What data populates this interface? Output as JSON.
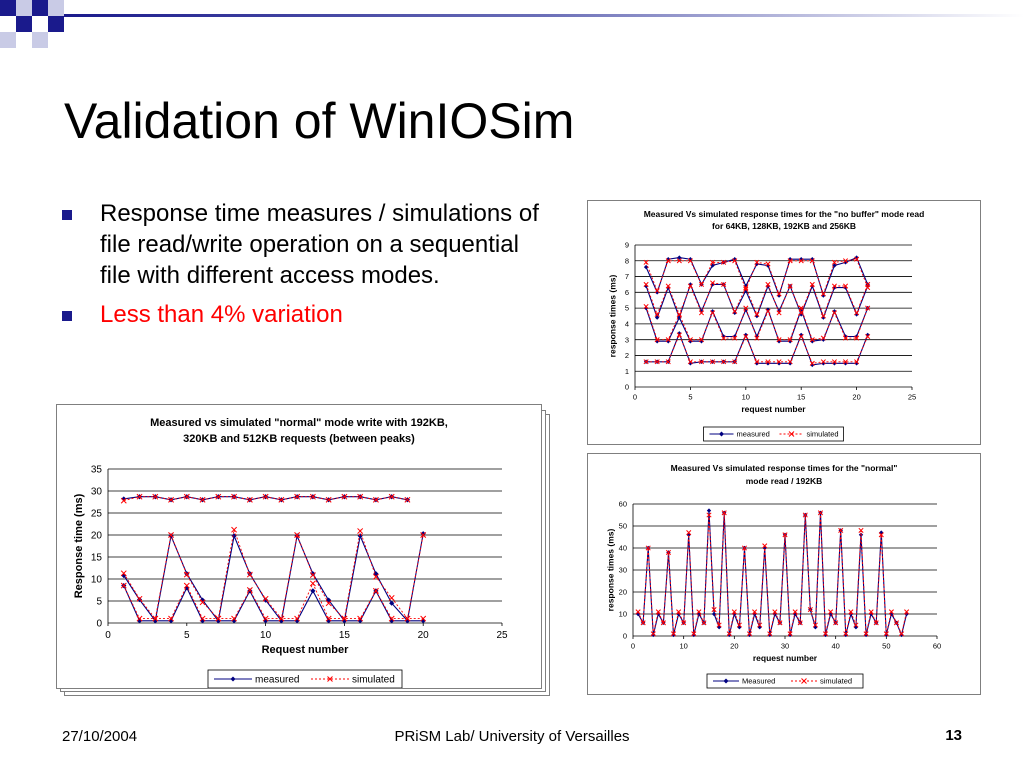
{
  "slide": {
    "title": "Validation of WinIOSim",
    "bullets": [
      "Response time measures / simulations of file read/write operation on a sequential file with different access modes.",
      "Less than 4% variation"
    ],
    "footer": {
      "date": "27/10/2004",
      "center": "PRiSM Lab/ University of Versailles",
      "page": "13"
    },
    "colors": {
      "measured": "#000080",
      "simulated": "#ff0000",
      "bullet_red": "#ff0000",
      "accent": "#1a1a8c"
    }
  },
  "chart_data": [
    {
      "id": "nobuffer",
      "type": "line",
      "title_line1": "Measured Vs simulated response times for the \"no buffer\" mode read",
      "title_line2": "for 64KB, 128KB,  192KB and 256KB",
      "xlabel": "request number",
      "ylabel": "response times (ms)",
      "xlim": [
        0,
        25
      ],
      "ylim": [
        0,
        9
      ],
      "xticks": [
        0,
        5,
        10,
        15,
        20,
        25
      ],
      "yticks": [
        0,
        1,
        2,
        3,
        4,
        5,
        6,
        7,
        8,
        9
      ],
      "legend": "bottom",
      "legend_labels": [
        "measured",
        "simulated"
      ],
      "grid": true,
      "x": [
        1,
        2,
        3,
        4,
        5,
        6,
        7,
        8,
        9,
        10,
        11,
        12,
        13,
        14,
        15,
        16,
        17,
        18,
        19,
        20,
        21
      ],
      "series": [
        {
          "name": "measured",
          "values": [
            7.6,
            6.0,
            8.1,
            8.2,
            8.1,
            6.5,
            7.7,
            7.9,
            8.1,
            6.4,
            7.8,
            7.7,
            5.8,
            8.1,
            8.1,
            8.1,
            5.8,
            7.7,
            7.9,
            8.2,
            6.5
          ]
        },
        {
          "name": "measured",
          "values": [
            6.4,
            4.4,
            6.3,
            4.4,
            6.5,
            4.8,
            6.5,
            6.5,
            4.7,
            6.1,
            4.5,
            6.4,
            4.8,
            6.4,
            4.6,
            6.4,
            4.4,
            6.3,
            6.3,
            4.6,
            6.4
          ]
        },
        {
          "name": "measured",
          "values": [
            5.0,
            2.9,
            2.9,
            4.4,
            2.9,
            2.9,
            4.8,
            3.2,
            3.2,
            4.9,
            3.2,
            4.9,
            2.9,
            2.9,
            4.9,
            2.9,
            3.0,
            4.8,
            3.2,
            3.2,
            5.0
          ]
        },
        {
          "name": "measured",
          "values": [
            1.6,
            1.6,
            1.6,
            3.4,
            1.5,
            1.6,
            1.6,
            1.6,
            1.6,
            3.3,
            1.5,
            1.5,
            1.5,
            1.5,
            3.3,
            1.4,
            1.5,
            1.5,
            1.5,
            1.5,
            3.3
          ]
        },
        {
          "name": "simulated",
          "values": [
            7.9,
            6.1,
            8.0,
            8.0,
            8.0,
            6.5,
            7.9,
            7.9,
            8.0,
            6.2,
            7.9,
            7.8,
            5.9,
            8.0,
            8.0,
            8.0,
            5.9,
            7.9,
            8.0,
            8.1,
            6.3
          ]
        },
        {
          "name": "simulated",
          "values": [
            6.5,
            4.6,
            6.4,
            4.6,
            6.4,
            4.7,
            6.6,
            6.5,
            4.8,
            6.3,
            4.6,
            6.5,
            4.7,
            6.4,
            4.7,
            6.5,
            4.5,
            6.4,
            6.4,
            4.7,
            6.5
          ]
        },
        {
          "name": "simulated",
          "values": [
            5.1,
            3.0,
            3.0,
            4.6,
            3.0,
            3.0,
            4.7,
            3.1,
            3.1,
            5.0,
            3.1,
            4.8,
            3.0,
            3.0,
            5.0,
            3.0,
            3.1,
            4.7,
            3.1,
            3.1,
            5.0
          ]
        },
        {
          "name": "simulated",
          "values": [
            1.6,
            1.6,
            1.6,
            3.3,
            1.6,
            1.6,
            1.6,
            1.6,
            1.6,
            3.2,
            1.6,
            1.6,
            1.6,
            1.6,
            3.2,
            1.5,
            1.6,
            1.6,
            1.6,
            1.6,
            3.2
          ]
        }
      ]
    },
    {
      "id": "normalread",
      "type": "line",
      "title_line1": "Measured Vs simulated response times for the \"normal\"",
      "title_line2": "mode read / 192KB",
      "xlabel": "request number",
      "ylabel": "response times (ms)",
      "xlim": [
        0,
        60
      ],
      "ylim": [
        0,
        60
      ],
      "xticks": [
        0,
        10,
        20,
        30,
        40,
        50,
        60
      ],
      "yticks": [
        0,
        10,
        20,
        30,
        40,
        50,
        60
      ],
      "legend": "bottom",
      "legend_labels": [
        "Measured",
        "simulated"
      ],
      "grid": true,
      "x": [
        1,
        2,
        3,
        4,
        5,
        6,
        7,
        8,
        9,
        10,
        11,
        12,
        13,
        14,
        15,
        16,
        17,
        18,
        19,
        20,
        21,
        22,
        23,
        24,
        25,
        26,
        27,
        28,
        29,
        30,
        31,
        32,
        33,
        34,
        35,
        36,
        37,
        38,
        39,
        40,
        41,
        42,
        43,
        44,
        45,
        46,
        47,
        48,
        49,
        50,
        51,
        52,
        53,
        54
      ],
      "series": [
        {
          "name": "Measured",
          "values": [
            10,
            6,
            40,
            0.5,
            10,
            6,
            38,
            0.5,
            10,
            6,
            46,
            0.5,
            10,
            6,
            57,
            10,
            4,
            56,
            0.5,
            10,
            4,
            40,
            0.5,
            10,
            4,
            40,
            0.5,
            10,
            6,
            46,
            0.5,
            10,
            6,
            55,
            12,
            4,
            56,
            0.5,
            10,
            6,
            48,
            0.5,
            10,
            4,
            46,
            0.5,
            10,
            6,
            47,
            0.5,
            10,
            6,
            0.5,
            10
          ]
        },
        {
          "name": "simulated",
          "values": [
            11,
            6,
            40,
            1,
            11,
            6,
            38,
            1,
            11,
            6,
            47,
            1,
            11,
            6,
            55,
            12,
            5,
            56,
            1,
            11,
            5,
            40,
            1,
            11,
            5,
            41,
            1,
            11,
            6,
            46,
            1,
            11,
            6,
            55,
            12,
            5,
            56,
            1,
            11,
            6,
            48,
            1,
            11,
            5,
            48,
            1,
            11,
            6,
            46,
            1,
            11,
            6,
            1,
            11
          ]
        }
      ]
    },
    {
      "id": "normalwrite",
      "type": "line",
      "title_line1": "Measured vs simulated \"normal\" mode write with 192KB,",
      "title_line2": "320KB and 512KB requests (between peaks)",
      "xlabel": "Request number",
      "ylabel": "Response time (ms)",
      "xlim": [
        0,
        25
      ],
      "ylim": [
        0,
        35
      ],
      "xticks": [
        0,
        5,
        10,
        15,
        20,
        25
      ],
      "yticks": [
        0,
        5,
        10,
        15,
        20,
        25,
        30,
        35
      ],
      "legend": "bottom",
      "legend_labels": [
        "measured",
        "simulated"
      ],
      "grid": true,
      "x": [
        1,
        2,
        3,
        4,
        5,
        6,
        7,
        8,
        9,
        10,
        11,
        12,
        13,
        14,
        15,
        16,
        17,
        18,
        19,
        20
      ],
      "series": [
        {
          "name": "measured",
          "values": [
            28.2,
            28.7,
            28.7,
            28.0,
            28.7,
            28.0,
            28.7,
            28.7,
            28.0,
            28.7,
            28.0,
            28.7,
            28.7,
            28.0,
            28.7,
            28.7,
            28.0,
            28.7,
            28.0,
            null
          ]
        },
        {
          "name": "measured",
          "values": [
            10.8,
            5.3,
            0.5,
            19.8,
            11.2,
            5.2,
            0.5,
            19.8,
            11.2,
            5.2,
            0.5,
            19.8,
            11.2,
            5.2,
            0.5,
            19.8,
            11.2,
            4.5,
            0.5,
            20.3
          ]
        },
        {
          "name": "measured",
          "values": [
            8.5,
            0.5,
            0.5,
            0.5,
            8.0,
            0.5,
            0.5,
            0.5,
            7.3,
            0.5,
            0.5,
            0.5,
            7.3,
            0.5,
            0.5,
            0.5,
            7.3,
            0.5,
            0.5,
            0.5
          ]
        },
        {
          "name": "simulated",
          "values": [
            27.8,
            28.7,
            28.7,
            28.0,
            28.7,
            28.0,
            28.7,
            28.7,
            28.0,
            28.7,
            28.0,
            28.7,
            28.7,
            28.0,
            28.7,
            28.7,
            28.0,
            28.7,
            28.0,
            null
          ]
        },
        {
          "name": "simulated",
          "values": [
            11.3,
            5.5,
            1.0,
            20.0,
            11.0,
            4.7,
            1.0,
            21.2,
            11.0,
            5.5,
            1.0,
            20.0,
            10.9,
            4.5,
            1.0,
            20.9,
            10.5,
            5.7,
            1.0,
            20.0
          ]
        },
        {
          "name": "simulated",
          "values": [
            8.5,
            1.0,
            1.0,
            1.0,
            8.5,
            1.0,
            1.0,
            1.0,
            7.5,
            1.0,
            1.0,
            1.0,
            9.0,
            1.0,
            1.0,
            1.0,
            7.3,
            1.0,
            1.0,
            1.0
          ]
        }
      ]
    }
  ]
}
